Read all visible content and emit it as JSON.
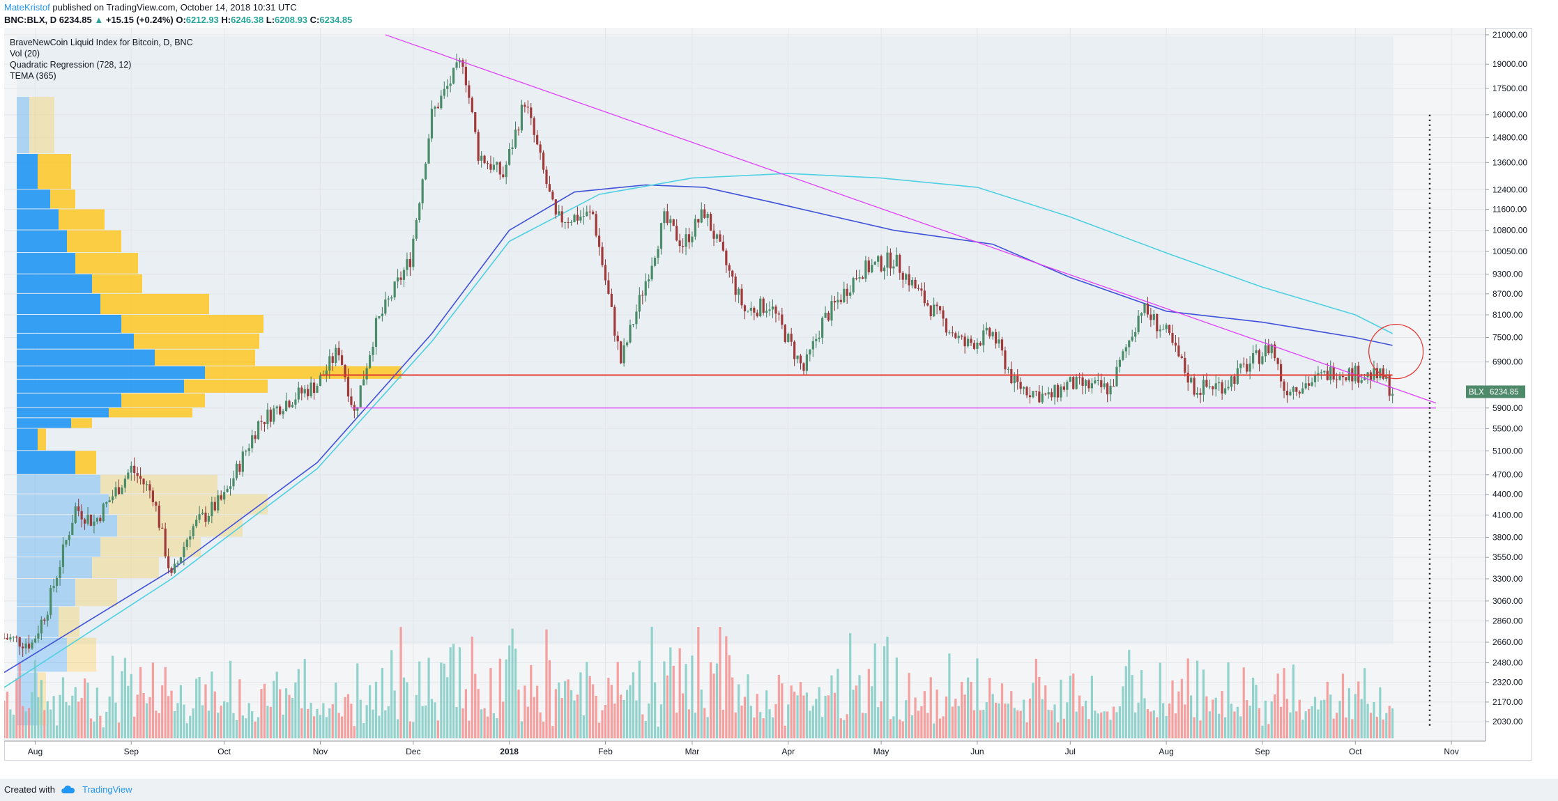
{
  "header": {
    "author": "MateKristof",
    "published_text": "published on TradingView.com, October 14, 2018 10:31 UTC",
    "symbol": "BNC:BLX, D",
    "last": "6234.85",
    "change": "+15.15 (+0.24%)",
    "open_label": "O:",
    "open": "6212.93",
    "high_label": "H:",
    "high": "6246.38",
    "low_label": "L:",
    "low": "6208.93",
    "close_label": "C:",
    "close": "6234.85"
  },
  "legend": {
    "title": "BraveNewCoin Liquid Index for Bitcoin, D, BNC",
    "vol": "Vol (20)",
    "quad": "Quadratic Regression (728, 12)",
    "tema": "TEMA (365)"
  },
  "footer": {
    "created": "Created with",
    "brand": "TradingView"
  },
  "colors": {
    "up": "#26a69a",
    "down": "#ef5350",
    "vol_up": "#80cbc4",
    "vol_down": "#f48f8f",
    "trendline": "#e040fb",
    "support": "#e53935",
    "regression": "#3f51d9",
    "tema": "#4dd0e1",
    "vp_up": "#2196f3",
    "vp_down": "#ffc107"
  },
  "chart_data": {
    "type": "candlestick",
    "scale": "log",
    "price_ticks": [
      21000,
      19000,
      17500,
      16000,
      14800,
      13600,
      12400,
      11600,
      10800,
      10050,
      9300,
      8700,
      8100,
      7500,
      6900,
      5900,
      5500,
      5100,
      4700,
      4400,
      4100,
      3800,
      3550,
      3300,
      3060,
      2860,
      2660,
      2480,
      2320,
      2170,
      2030
    ],
    "price_range": [
      1900,
      21500
    ],
    "time_labels": [
      "Aug",
      "Sep",
      "Oct",
      "Nov",
      "Dec",
      "2018",
      "Feb",
      "Mar",
      "Apr",
      "May",
      "Jun",
      "Jul",
      "Aug",
      "Sep",
      "Oct",
      "Nov"
    ],
    "time_range": [
      "2017-07-22",
      "2018-11-12"
    ],
    "last_price_label": {
      "symbol": "BLX",
      "value": "6234.85"
    },
    "price_path": [
      [
        "2017-07-22",
        2700
      ],
      [
        "2017-07-31",
        2650
      ],
      [
        "2017-08-05",
        3000
      ],
      [
        "2017-08-14",
        4200
      ],
      [
        "2017-08-20",
        4000
      ],
      [
        "2017-09-01",
        4800
      ],
      [
        "2017-09-08",
        4400
      ],
      [
        "2017-09-14",
        3300
      ],
      [
        "2017-09-20",
        3900
      ],
      [
        "2017-10-01",
        4350
      ],
      [
        "2017-10-12",
        5600
      ],
      [
        "2017-10-20",
        6000
      ],
      [
        "2017-10-31",
        6400
      ],
      [
        "2017-11-07",
        7200
      ],
      [
        "2017-11-12",
        5800
      ],
      [
        "2017-11-19",
        7800
      ],
      [
        "2017-11-30",
        9800
      ],
      [
        "2017-12-07",
        16000
      ],
      [
        "2017-12-17",
        19300
      ],
      [
        "2017-12-22",
        14000
      ],
      [
        "2017-12-30",
        13000
      ],
      [
        "2018-01-06",
        16800
      ],
      [
        "2018-01-16",
        11200
      ],
      [
        "2018-01-28",
        11400
      ],
      [
        "2018-02-06",
        6900
      ],
      [
        "2018-02-11",
        8200
      ],
      [
        "2018-02-20",
        11200
      ],
      [
        "2018-02-26",
        10300
      ],
      [
        "2018-03-05",
        11500
      ],
      [
        "2018-03-18",
        8200
      ],
      [
        "2018-03-26",
        8400
      ],
      [
        "2018-04-06",
        6700
      ],
      [
        "2018-04-12",
        7900
      ],
      [
        "2018-04-24",
        9400
      ],
      [
        "2018-05-05",
        9800
      ],
      [
        "2018-05-15",
        8500
      ],
      [
        "2018-05-28",
        7300
      ],
      [
        "2018-06-06",
        7600
      ],
      [
        "2018-06-13",
        6400
      ],
      [
        "2018-06-24",
        6100
      ],
      [
        "2018-06-30",
        6400
      ],
      [
        "2018-07-14",
        6300
      ],
      [
        "2018-07-24",
        8300
      ],
      [
        "2018-08-01",
        7600
      ],
      [
        "2018-08-10",
        6300
      ],
      [
        "2018-08-20",
        6400
      ],
      [
        "2018-09-04",
        7300
      ],
      [
        "2018-09-08",
        6300
      ],
      [
        "2018-09-17",
        6450
      ],
      [
        "2018-09-24",
        6700
      ],
      [
        "2018-10-10",
        6550
      ],
      [
        "2018-10-13",
        6235
      ]
    ],
    "series": [
      {
        "name": "Quadratic Regression (728, 12)",
        "points": [
          [
            "2017-07-22",
            2400
          ],
          [
            "2017-09-14",
            3400
          ],
          [
            "2017-10-31",
            4900
          ],
          [
            "2017-12-07",
            7600
          ],
          [
            "2018-01-01",
            10800
          ],
          [
            "2018-01-22",
            12300
          ],
          [
            "2018-02-14",
            12600
          ],
          [
            "2018-03-05",
            12500
          ],
          [
            "2018-03-26",
            11900
          ],
          [
            "2018-05-05",
            10800
          ],
          [
            "2018-06-06",
            10300
          ],
          [
            "2018-07-01",
            9200
          ],
          [
            "2018-08-01",
            8200
          ],
          [
            "2018-09-01",
            7900
          ],
          [
            "2018-10-01",
            7500
          ],
          [
            "2018-10-13",
            7300
          ]
        ]
      },
      {
        "name": "TEMA (365)",
        "points": [
          [
            "2017-07-22",
            2280
          ],
          [
            "2017-09-14",
            3300
          ],
          [
            "2017-10-31",
            4800
          ],
          [
            "2017-12-07",
            7400
          ],
          [
            "2018-01-01",
            10400
          ],
          [
            "2018-01-30",
            12200
          ],
          [
            "2018-03-01",
            12900
          ],
          [
            "2018-04-01",
            13100
          ],
          [
            "2018-05-01",
            12900
          ],
          [
            "2018-06-01",
            12500
          ],
          [
            "2018-07-01",
            11300
          ],
          [
            "2018-08-01",
            10000
          ],
          [
            "2018-09-01",
            8900
          ],
          [
            "2018-10-01",
            8100
          ],
          [
            "2018-10-13",
            7600
          ]
        ]
      }
    ],
    "annotations": [
      {
        "type": "trendline",
        "from": [
          "2017-11-22",
          21000
        ],
        "to": [
          "2018-10-27",
          6000
        ]
      },
      {
        "type": "trendline",
        "from": [
          "2017-11-11",
          5900
        ],
        "to": [
          "2018-10-27",
          5900
        ]
      },
      {
        "type": "horizontal",
        "from": [
          "2017-11-01",
          6600
        ],
        "to": [
          "2018-10-13",
          6600
        ]
      },
      {
        "type": "circle",
        "center": [
          "2018-10-13",
          7150
        ]
      },
      {
        "type": "vertical-dotted",
        "from": [
          "2018-10-25",
          16000
        ],
        "to": [
          "2018-10-25",
          2000
        ]
      }
    ],
    "volume_profile": [
      [
        2000,
        2400,
        0.05,
        0.02
      ],
      [
        2400,
        2700,
        0.12,
        0.07
      ],
      [
        2700,
        3000,
        0.1,
        0.05
      ],
      [
        3000,
        3300,
        0.14,
        0.1
      ],
      [
        3300,
        3550,
        0.18,
        0.16
      ],
      [
        3550,
        3800,
        0.2,
        0.24
      ],
      [
        3800,
        4100,
        0.24,
        0.3
      ],
      [
        4100,
        4400,
        0.22,
        0.38
      ],
      [
        4400,
        4700,
        0.2,
        0.28
      ],
      [
        4700,
        5100,
        0.14,
        0.05
      ],
      [
        5100,
        5500,
        0.05,
        0.02
      ],
      [
        5500,
        5700,
        0.13,
        0.05
      ],
      [
        5700,
        5900,
        0.22,
        0.2
      ],
      [
        5900,
        6200,
        0.25,
        0.2
      ],
      [
        6200,
        6500,
        0.4,
        0.2
      ],
      [
        6500,
        6800,
        0.45,
        0.47
      ],
      [
        6800,
        7200,
        0.33,
        0.24
      ],
      [
        7200,
        7600,
        0.28,
        0.3
      ],
      [
        7600,
        8100,
        0.25,
        0.34
      ],
      [
        8100,
        8700,
        0.2,
        0.26
      ],
      [
        8700,
        9300,
        0.18,
        0.12
      ],
      [
        9300,
        10000,
        0.14,
        0.15
      ],
      [
        10000,
        10800,
        0.12,
        0.13
      ],
      [
        10800,
        11600,
        0.1,
        0.11
      ],
      [
        11600,
        12400,
        0.08,
        0.06
      ],
      [
        12400,
        14000,
        0.05,
        0.08
      ],
      [
        14000,
        17000,
        0.03,
        0.06
      ]
    ]
  }
}
